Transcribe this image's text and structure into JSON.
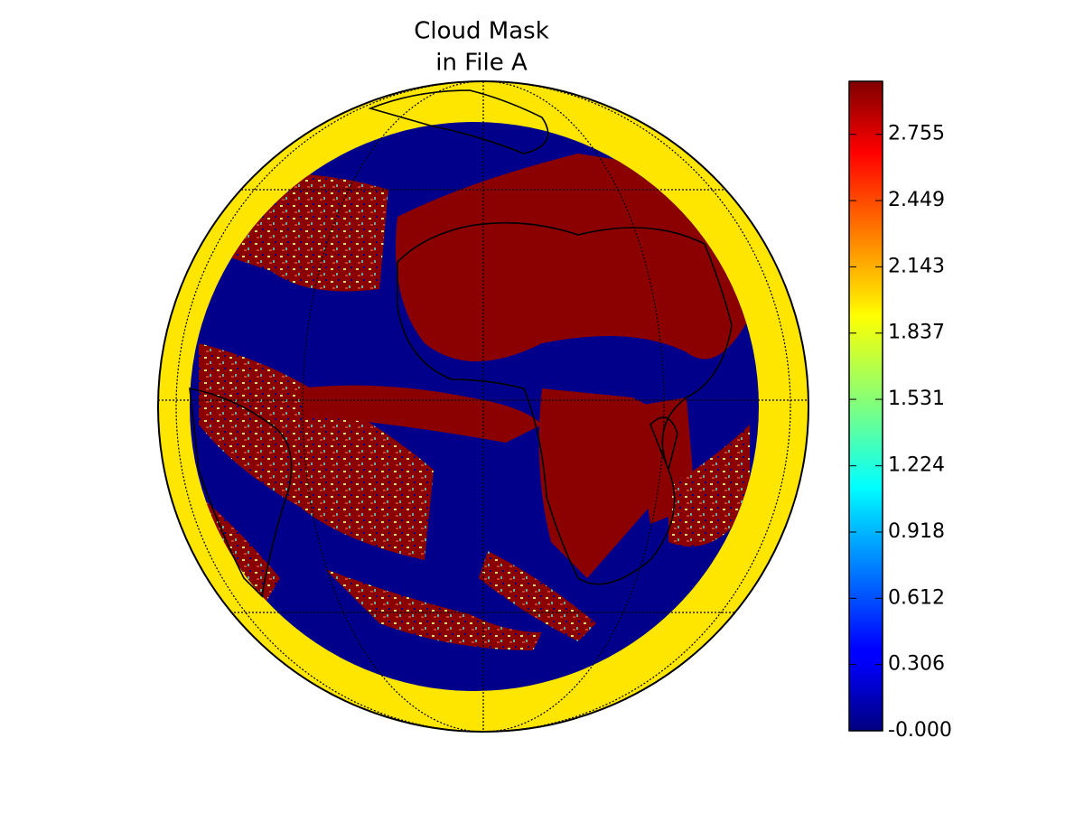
{
  "chart_data": {
    "type": "map",
    "title": [
      "Cloud Mask",
      "in File A"
    ],
    "colorbar": {
      "colormap": "jet",
      "lim": [
        0,
        3
      ],
      "ticks": [
        {
          "value": 0,
          "label": "-0.000"
        },
        0.306,
        0.612,
        0.918,
        1.224,
        1.531,
        1.837,
        2.143,
        2.449,
        2.755
      ]
    }
  }
}
